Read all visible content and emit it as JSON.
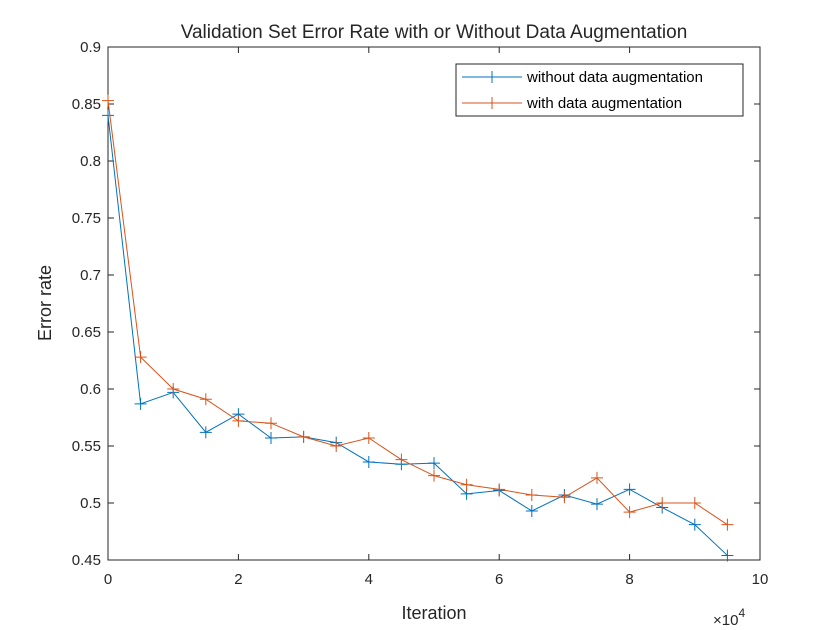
{
  "chart_data": {
    "type": "line",
    "title": "Validation Set Error Rate with or Without Data Augmentation",
    "xlabel": "Iteration",
    "ylabel": "Error rate",
    "x_multiplier_label": "×10",
    "x_multiplier_exponent": "4",
    "xlim": [
      0,
      10
    ],
    "ylim": [
      0.45,
      0.9
    ],
    "xticks": [
      "0",
      "2",
      "4",
      "6",
      "8",
      "10"
    ],
    "yticks": [
      "0.45",
      "0.5",
      "0.55",
      "0.6",
      "0.65",
      "0.7",
      "0.75",
      "0.8",
      "0.85",
      "0.9"
    ],
    "grid": false,
    "legend_position": "top-right",
    "x": [
      0,
      0.5,
      1,
      1.5,
      2,
      2.5,
      3,
      3.5,
      4,
      4.5,
      5,
      5.5,
      6,
      6.5,
      7,
      7.5,
      8,
      8.5,
      9,
      9.5
    ],
    "series": [
      {
        "name": "without data augmentation",
        "color": "#0072BD",
        "marker": "+",
        "values": [
          0.84,
          0.587,
          0.597,
          0.562,
          0.578,
          0.557,
          0.558,
          0.553,
          0.536,
          0.534,
          0.535,
          0.508,
          0.511,
          0.493,
          0.507,
          0.499,
          0.512,
          0.496,
          0.481,
          0.454
        ]
      },
      {
        "name": "with data augmentation",
        "color": "#D95319",
        "marker": "+",
        "values": [
          0.853,
          0.628,
          0.6,
          0.591,
          0.572,
          0.57,
          0.558,
          0.55,
          0.557,
          0.538,
          0.524,
          0.516,
          0.512,
          0.507,
          0.505,
          0.522,
          0.492,
          0.5,
          0.5,
          0.481
        ]
      }
    ]
  }
}
